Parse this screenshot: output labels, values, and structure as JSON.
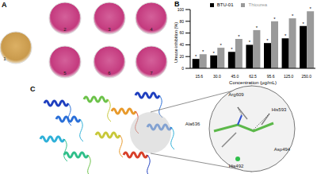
{
  "panel_labels": [
    "A",
    "B",
    "C"
  ],
  "dishes": [
    "1",
    "2",
    "3",
    "4",
    "5",
    "6",
    "7"
  ],
  "residues": [
    "Arg609",
    "His593",
    "Ala636",
    "Asp494",
    "His492"
  ],
  "chart_data": {
    "type": "bar",
    "categories": [
      "15.6",
      "30.0",
      "45.0",
      "62.5",
      "95.6",
      "125.0",
      "250.0"
    ],
    "series": [
      {
        "name": "BTU-01",
        "color": "#000000",
        "values": [
          16,
          22,
          28,
          40,
          43,
          51,
          72
        ]
      },
      {
        "name": "Thiourea",
        "color": "#9a9a9a",
        "values": [
          24,
          35,
          50,
          65,
          80,
          85,
          97
        ]
      }
    ],
    "x_label": "Concentration (μg/mL)",
    "y_label": "Urease inhibition (%)",
    "ylim": [
      0,
      100
    ],
    "yticks": [
      0,
      20,
      40,
      60,
      80,
      100
    ],
    "annotation": "*",
    "legend": "top"
  }
}
